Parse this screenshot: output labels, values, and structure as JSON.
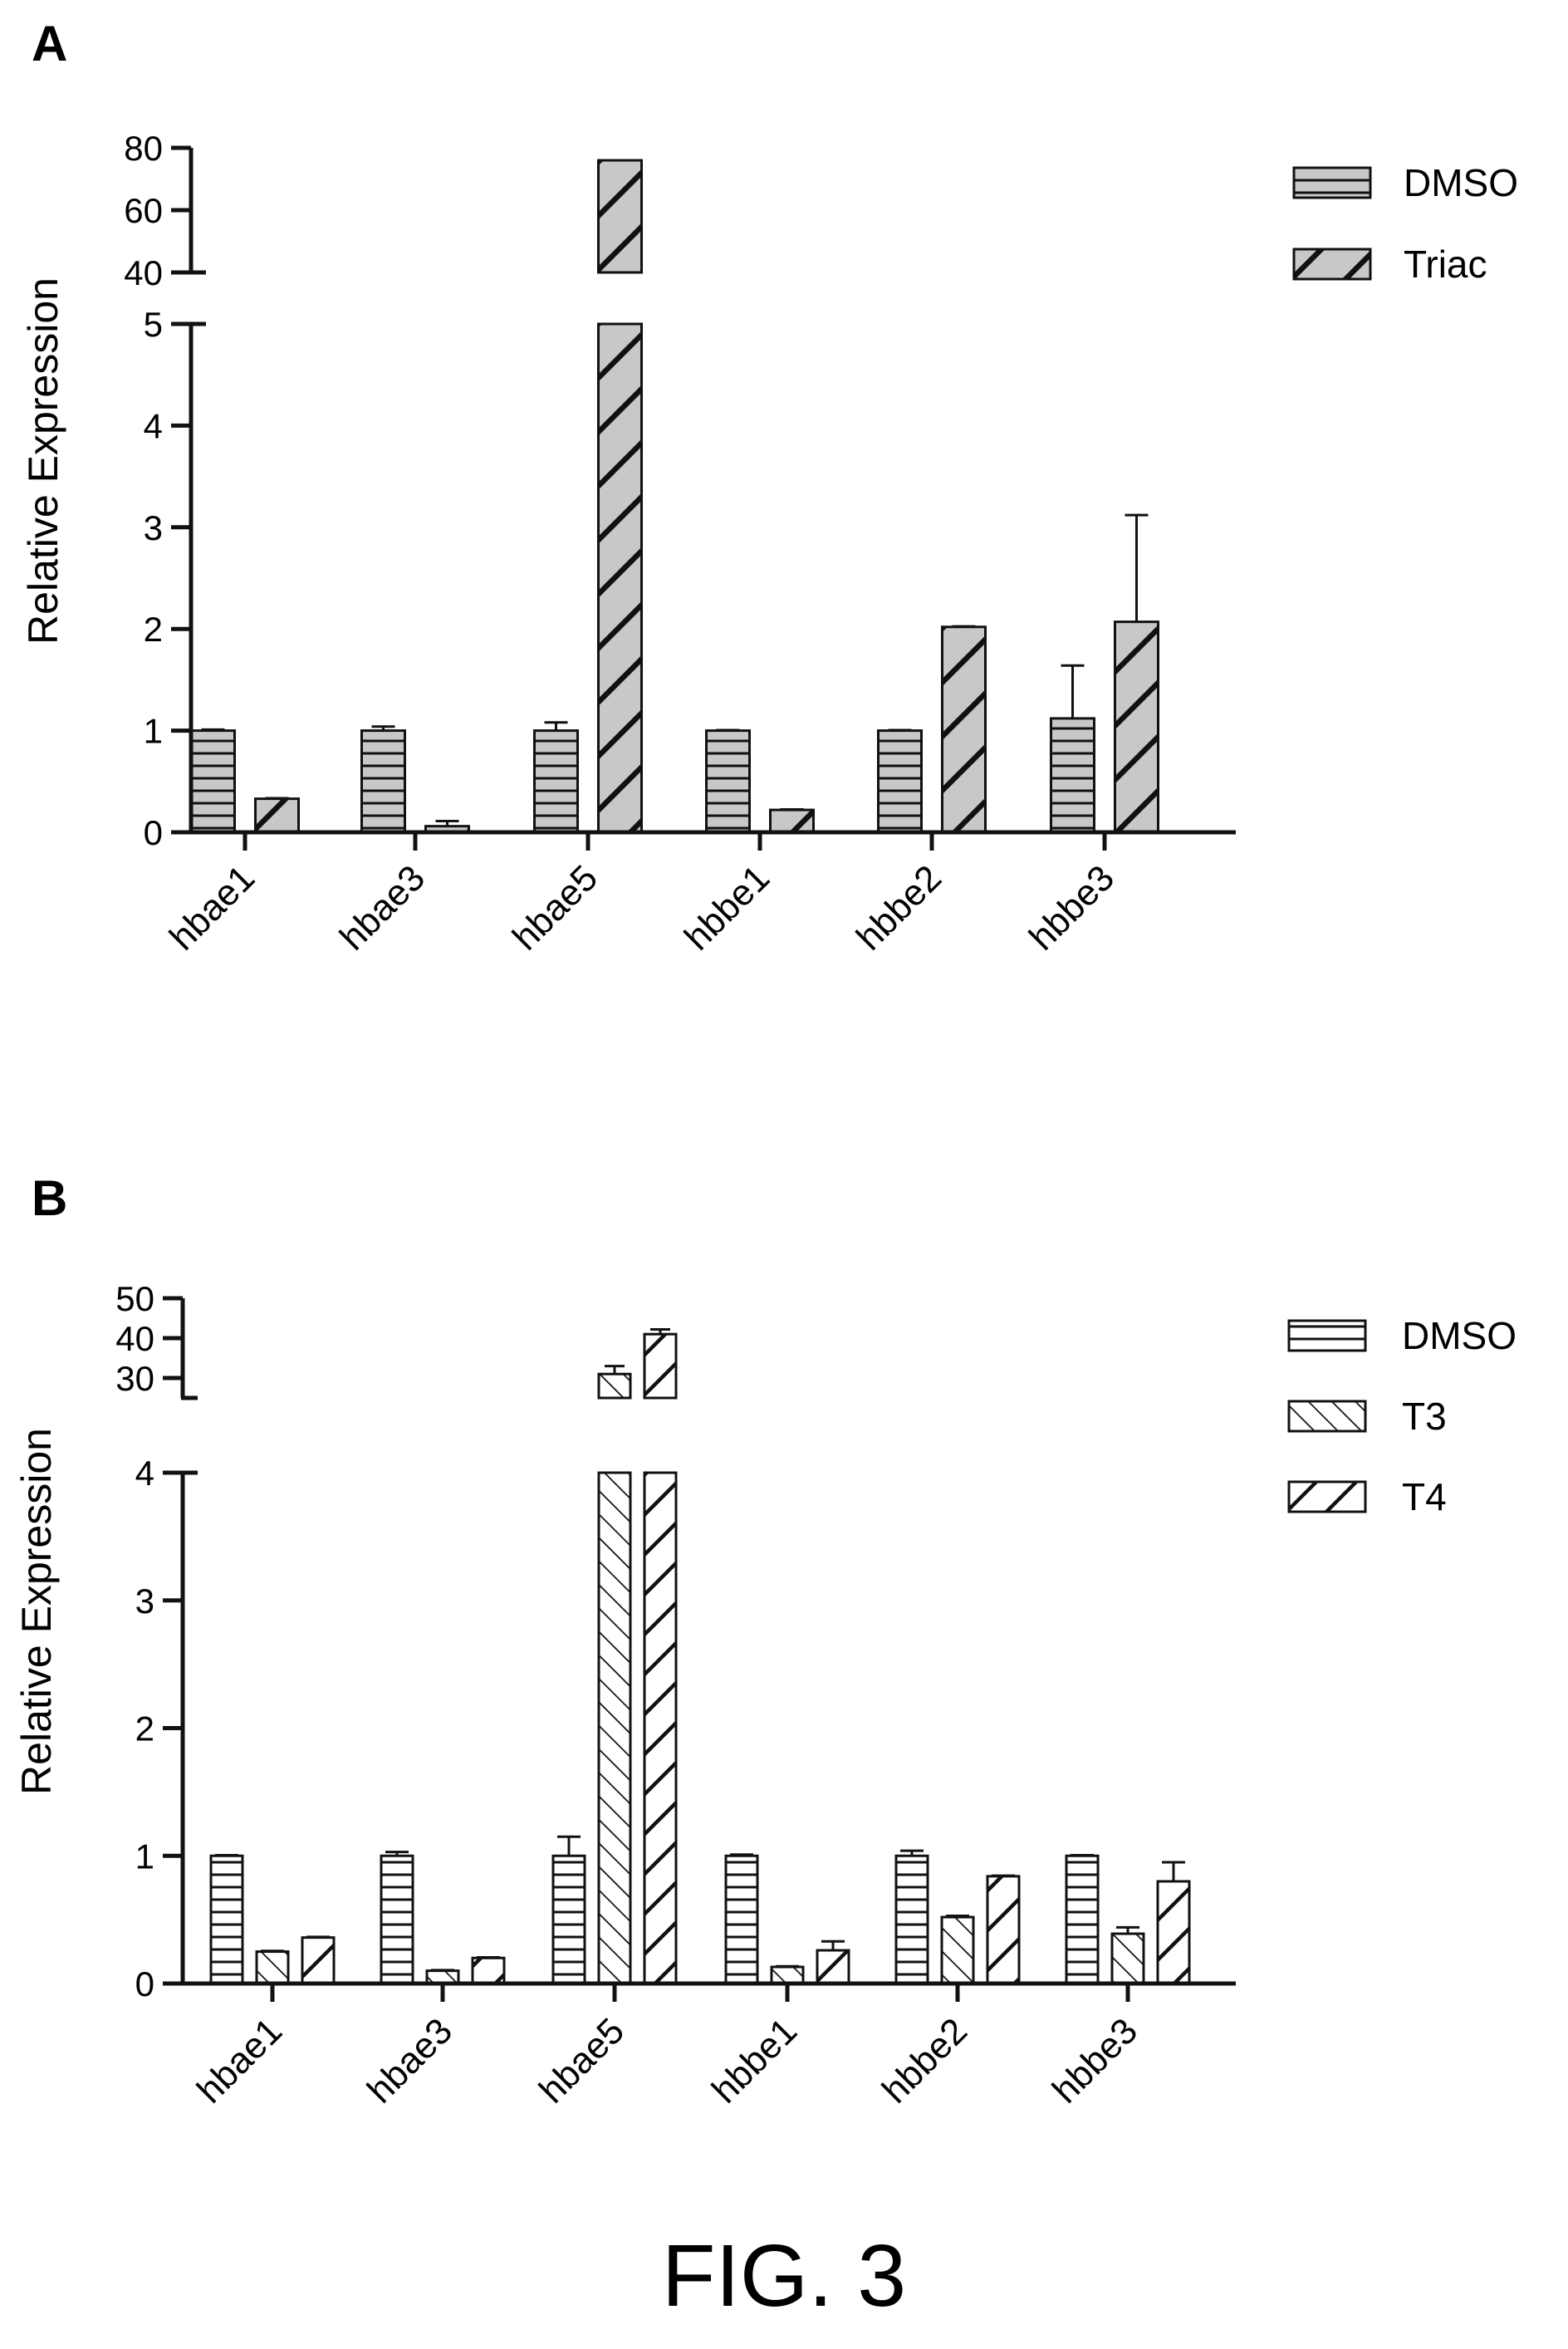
{
  "figure_caption": "FIG. 3",
  "colors": {
    "fill_panel_a": "#c8c8c8",
    "fill_panel_b": "#ffffff",
    "stroke": "#111111"
  },
  "chart_data": [
    {
      "panel_label": "A",
      "type": "bar",
      "ylabel": "Relative Expression",
      "categories": [
        "hbae1",
        "hbae3",
        "hbae5",
        "hbbe1",
        "hbbe2",
        "hbbe3"
      ],
      "y_axis": {
        "broken": true,
        "lower": {
          "range": [
            0,
            5
          ],
          "ticks": [
            0,
            1,
            2,
            3,
            4,
            5
          ]
        },
        "upper": {
          "range": [
            40,
            80
          ],
          "ticks": [
            40,
            60,
            80
          ]
        }
      },
      "grid": false,
      "legend_position": "top-right",
      "series": [
        {
          "name": "DMSO",
          "pattern": "horizontal",
          "values": [
            1.0,
            1.0,
            1.0,
            1.0,
            1.0,
            1.12
          ],
          "errors": [
            0.01,
            0.04,
            0.08,
            0.005,
            0.005,
            0.52
          ]
        },
        {
          "name": "Triac",
          "pattern": "diagonal-back",
          "values": [
            0.33,
            0.06,
            76,
            0.22,
            2.02,
            2.07
          ],
          "errors": [
            0.005,
            0.05,
            0,
            0.005,
            0.005,
            1.05
          ]
        }
      ]
    },
    {
      "panel_label": "B",
      "type": "bar",
      "ylabel": "Relative Expression",
      "categories": [
        "hbae1",
        "hbae3",
        "hbae5",
        "hbbe1",
        "hbbe2",
        "hbbe3"
      ],
      "y_axis": {
        "broken": true,
        "lower": {
          "range": [
            0,
            4
          ],
          "ticks": [
            0,
            1,
            2,
            3,
            4
          ]
        },
        "upper": {
          "range": [
            25,
            50
          ],
          "ticks": [
            30,
            40,
            50
          ]
        }
      },
      "grid": false,
      "legend_position": "top-right",
      "series": [
        {
          "name": "DMSO",
          "pattern": "horizontal",
          "values": [
            1.0,
            1.0,
            1.0,
            1.0,
            1.0,
            1.0
          ],
          "errors": [
            0.005,
            0.03,
            0.15,
            0.01,
            0.04,
            0.005
          ]
        },
        {
          "name": "T3",
          "pattern": "diagonal-forward",
          "values": [
            0.25,
            0.1,
            31,
            0.13,
            0.52,
            0.39
          ],
          "errors": [
            0.005,
            0.005,
            2,
            0.005,
            0.01,
            0.05
          ]
        },
        {
          "name": "T4",
          "pattern": "diagonal-back",
          "values": [
            0.36,
            0.2,
            41,
            0.26,
            0.84,
            0.8
          ],
          "errors": [
            0.005,
            0.005,
            1.2,
            0.07,
            0.005,
            0.15
          ]
        }
      ]
    }
  ]
}
